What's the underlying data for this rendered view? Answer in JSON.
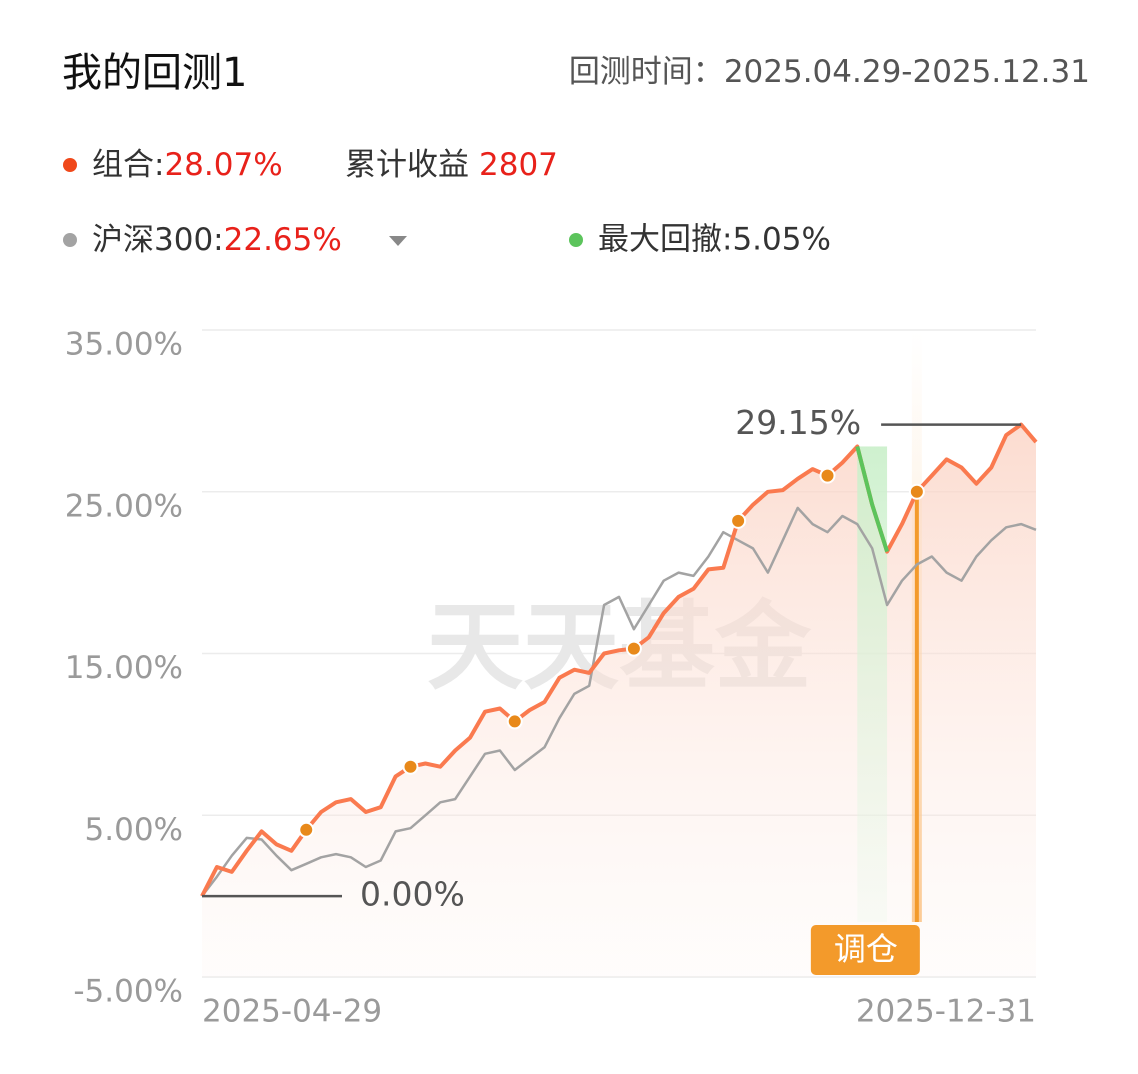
{
  "header": {
    "title": "我的回测1",
    "period_label": "回测时间：",
    "period": "2025.04.29-2025.12.31"
  },
  "chart_data": {
    "type": "line",
    "profit_label": "累计收益",
    "profit": "2807",
    "watermark": "天天基金",
    "rebalance_label": "调仓",
    "rebalance_points": [
      7,
      14,
      21,
      29,
      36,
      42,
      48
    ],
    "categories": [
      "2025-04-29",
      null,
      null,
      null,
      null,
      null,
      null,
      null,
      null,
      null,
      null,
      null,
      null,
      null,
      null,
      null,
      null,
      null,
      null,
      null,
      null,
      null,
      null,
      null,
      null,
      null,
      null,
      null,
      null,
      null,
      null,
      null,
      null,
      null,
      null,
      null,
      null,
      null,
      null,
      null,
      null,
      null,
      null,
      null,
      null,
      null,
      null,
      null,
      null,
      null,
      null,
      null,
      null,
      null,
      null,
      null,
      "2025-12-31"
    ],
    "series": [
      {
        "name": "组合:",
        "summary": "28.07%",
        "color": "#fa7a4f",
        "values": [
          0,
          1.8,
          1.5,
          2.8,
          4.0,
          3.2,
          2.8,
          4.1,
          5.2,
          5.8,
          6.0,
          5.2,
          5.5,
          7.4,
          8.0,
          8.2,
          8.0,
          9.0,
          9.8,
          11.4,
          11.6,
          10.8,
          11.5,
          12.0,
          13.5,
          14.0,
          13.8,
          15.0,
          15.2,
          15.3,
          16.0,
          17.5,
          18.5,
          19.0,
          20.2,
          20.3,
          23.2,
          24.2,
          25.0,
          25.1,
          25.8,
          26.4,
          26.0,
          26.8,
          27.8,
          24.2,
          21.3,
          23.0,
          25.0,
          26.0,
          27.0,
          26.5,
          25.5,
          26.5,
          28.5,
          29.15,
          28.07
        ],
        "value_labels": [
          "0.00%",
          null,
          null,
          null,
          null,
          null,
          null,
          null,
          null,
          null,
          null,
          null,
          null,
          null,
          null,
          null,
          null,
          null,
          null,
          null,
          null,
          null,
          null,
          null,
          null,
          null,
          null,
          null,
          null,
          null,
          null,
          null,
          null,
          null,
          null,
          null,
          null,
          null,
          null,
          null,
          null,
          null,
          null,
          null,
          null,
          null,
          null,
          null,
          null,
          null,
          null,
          null,
          null,
          null,
          null,
          "29.15%",
          null
        ]
      },
      {
        "name": "沪深300:",
        "summary": "22.65%",
        "color": "#a3a3a3",
        "values": [
          0,
          1.2,
          2.5,
          3.6,
          3.5,
          2.5,
          1.6,
          2.0,
          2.4,
          2.6,
          2.4,
          1.8,
          2.2,
          4.0,
          4.2,
          5.0,
          5.8,
          6.0,
          7.4,
          8.8,
          9.0,
          7.8,
          8.5,
          9.2,
          11.0,
          12.5,
          13.0,
          18.0,
          18.5,
          16.5,
          18.0,
          19.5,
          20.0,
          19.8,
          21.0,
          22.5,
          22.0,
          21.5,
          20.0,
          22.0,
          24.0,
          23.0,
          22.5,
          23.5,
          23.0,
          21.5,
          18.0,
          19.5,
          20.5,
          21.0,
          20.0,
          19.5,
          21.0,
          22.0,
          22.8,
          23.0,
          22.65
        ]
      },
      {
        "name": "最大回撤:5.05%",
        "color": "#5cc45c",
        "values": [
          null,
          null,
          null,
          null,
          null,
          null,
          null,
          null,
          null,
          null,
          null,
          null,
          null,
          null,
          null,
          null,
          null,
          null,
          null,
          null,
          null,
          null,
          null,
          null,
          null,
          null,
          null,
          null,
          null,
          null,
          null,
          null,
          null,
          null,
          null,
          null,
          null,
          null,
          null,
          null,
          null,
          null,
          null,
          null,
          27.8,
          24.2,
          21.3,
          null,
          null,
          null,
          null,
          null,
          null,
          null,
          null,
          null,
          null
        ]
      }
    ],
    "ylim": [
      -5,
      35
    ],
    "yticks": [
      {
        "value": 35,
        "label": "35.00%"
      },
      {
        "value": 25,
        "label": "25.00%"
      },
      {
        "value": 15,
        "label": "15.00%"
      },
      {
        "value": 5,
        "label": "5.00%"
      },
      {
        "value": -5,
        "label": "-5.00%"
      }
    ],
    "grid": true
  }
}
